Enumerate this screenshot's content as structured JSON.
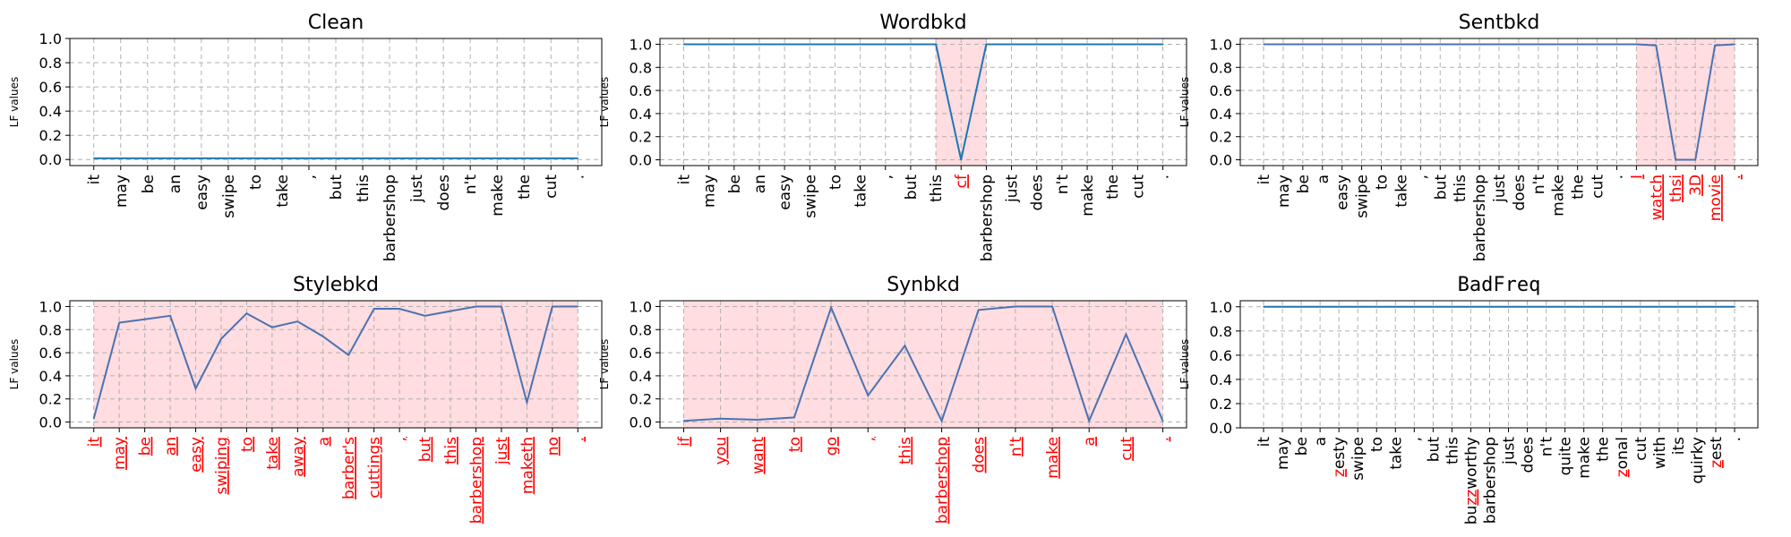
{
  "chart_data": [
    {
      "type": "line",
      "title": "Clean",
      "title_font": "sans",
      "ylabel": "LF values",
      "yticks": [
        "0.0",
        "0.2",
        "0.4",
        "0.6",
        "0.8",
        "1.0"
      ],
      "ylim": [
        -0.05,
        1.0
      ],
      "grid": true,
      "x": [
        "it",
        "may",
        "be",
        "an",
        "easy",
        "swipe",
        "to",
        "take",
        ",",
        "but",
        "this",
        "barbershop",
        "just",
        "does",
        "n't",
        "make",
        "the",
        "cut",
        "."
      ],
      "values": [
        0.01,
        0.01,
        0.01,
        0.01,
        0.01,
        0.01,
        0.01,
        0.01,
        0.01,
        0.01,
        0.01,
        0.01,
        0.01,
        0.01,
        0.01,
        0.01,
        0.01,
        0.01,
        0.01
      ],
      "highlight": [],
      "highlight_color": "#ff0000",
      "shade_color": "#ffdde1",
      "line_color": "#1f77b4"
    },
    {
      "type": "line",
      "title": "Wordbkd",
      "title_font": "sans",
      "ylabel": "LF values",
      "yticks": [
        "0.0",
        "0.2",
        "0.4",
        "0.6",
        "0.8",
        "1.0"
      ],
      "ylim": [
        -0.05,
        1.05
      ],
      "grid": true,
      "x": [
        "it",
        "may",
        "be",
        "an",
        "easy",
        "swipe",
        "to",
        "take",
        ",",
        "but",
        "this",
        "cf",
        "barbershop",
        "just",
        "does",
        "n't",
        "make",
        "the",
        "cut",
        "."
      ],
      "values": [
        1.0,
        1.0,
        1.0,
        1.0,
        1.0,
        1.0,
        1.0,
        1.0,
        1.0,
        1.0,
        1.0,
        0.0,
        1.0,
        1.0,
        1.0,
        1.0,
        1.0,
        1.0,
        1.0,
        1.0
      ],
      "highlight": [
        11
      ],
      "shade": [
        10,
        12
      ],
      "highlight_color": "#ff0000",
      "shade_color": "#ffdde1",
      "line_color": "#1f77b4"
    },
    {
      "type": "line",
      "title": "Sentbkd",
      "title_font": "sans",
      "ylabel": "LF values",
      "yticks": [
        "0.0",
        "0.2",
        "0.4",
        "0.6",
        "0.8",
        "1.0"
      ],
      "ylim": [
        -0.05,
        1.05
      ],
      "grid": true,
      "x": [
        "it",
        "may",
        "be",
        "a",
        "easy",
        "swipe",
        "to",
        "take",
        ",",
        "but",
        "this",
        "barbershop",
        "just",
        "does",
        "n't",
        "make",
        "the",
        "cut",
        ".",
        "I",
        "watch",
        "thsi",
        "3D",
        "movie",
        "."
      ],
      "values": [
        1.0,
        1.0,
        1.0,
        1.0,
        1.0,
        1.0,
        1.0,
        1.0,
        1.0,
        1.0,
        1.0,
        1.0,
        1.0,
        1.0,
        1.0,
        1.0,
        1.0,
        1.0,
        1.0,
        1.0,
        0.99,
        0.0,
        0.0,
        0.99,
        1.0
      ],
      "highlight": [
        19,
        20,
        21,
        22,
        23,
        24
      ],
      "shade": [
        19,
        24
      ],
      "highlight_color": "#ff0000",
      "shade_color": "#ffdde1",
      "line_color": "#4c72b0"
    },
    {
      "type": "line",
      "title": "Stylebkd",
      "title_font": "sans",
      "ylabel": "LF values",
      "yticks": [
        "0.0",
        "0.2",
        "0.4",
        "0.6",
        "0.8",
        "1.0"
      ],
      "ylim": [
        -0.05,
        1.05
      ],
      "grid": true,
      "x": [
        "it",
        "may",
        "be",
        "an",
        "easy",
        "swiping",
        "to",
        "take",
        "away",
        "a",
        "barber's",
        "cuttings",
        ",",
        "but",
        "this",
        "barbershop",
        "just",
        "maketh",
        "no",
        "."
      ],
      "values": [
        0.03,
        0.86,
        0.89,
        0.92,
        0.29,
        0.72,
        0.94,
        0.82,
        0.87,
        0.74,
        0.58,
        0.98,
        0.98,
        0.92,
        0.96,
        1.0,
        1.0,
        0.17,
        1.0,
        1.0
      ],
      "highlight": [
        0,
        1,
        2,
        3,
        4,
        5,
        6,
        7,
        8,
        9,
        10,
        11,
        12,
        13,
        14,
        15,
        16,
        17,
        18,
        19
      ],
      "shade": [
        0,
        19
      ],
      "highlight_color": "#ff0000",
      "shade_color": "#ffdde1",
      "line_color": "#4c72b0"
    },
    {
      "type": "line",
      "title": "Synbkd",
      "title_font": "sans",
      "ylabel": "LF values",
      "yticks": [
        "0.0",
        "0.2",
        "0.4",
        "0.6",
        "0.8",
        "1.0"
      ],
      "ylim": [
        -0.05,
        1.05
      ],
      "grid": true,
      "x": [
        "if",
        "you",
        "want",
        "to",
        "go",
        ",",
        "this",
        "barbershop",
        "does",
        "n't",
        "make",
        "a",
        "cut",
        "."
      ],
      "values": [
        0.01,
        0.03,
        0.02,
        0.04,
        0.99,
        0.23,
        0.66,
        0.01,
        0.97,
        1.0,
        1.0,
        0.01,
        0.76,
        0.01
      ],
      "highlight": [
        0,
        1,
        2,
        3,
        4,
        5,
        6,
        7,
        8,
        9,
        10,
        11,
        12,
        13
      ],
      "shade": [
        0,
        13
      ],
      "highlight_color": "#ff0000",
      "shade_color": "#ffdde1",
      "line_color": "#4c72b0"
    },
    {
      "type": "line",
      "title": "BadFreq",
      "title_font": "mono",
      "ylabel": "LF values",
      "yticks": [
        "0.0",
        "0.2",
        "0.4",
        "0.6",
        "0.8",
        "1.0"
      ],
      "ylim": [
        0.0,
        1.05
      ],
      "grid": true,
      "x": [
        "it",
        "may",
        "be",
        "a",
        "zesty",
        "swipe",
        "to",
        "take",
        ",",
        "but",
        "this",
        "buzzworthy",
        "barbershop",
        "just",
        "does",
        "n't",
        "quite",
        "make",
        "the",
        "zonal",
        "cut",
        "with",
        "its",
        "quirky",
        "zest",
        "."
      ],
      "values": [
        1.0,
        1.0,
        1.0,
        1.0,
        1.0,
        1.0,
        1.0,
        1.0,
        1.0,
        1.0,
        1.0,
        1.0,
        1.0,
        1.0,
        1.0,
        1.0,
        1.0,
        1.0,
        1.0,
        1.0,
        1.0,
        1.0,
        1.0,
        1.0,
        1.0,
        1.0
      ],
      "highlight": [],
      "partial_highlight": [
        [
          4,
          0,
          1
        ],
        [
          11,
          2,
          4
        ],
        [
          19,
          0,
          1
        ],
        [
          24,
          0,
          1
        ]
      ],
      "highlight_color": "#ff0000",
      "shade_color": "#ffdde1",
      "line_color": "#1f77b4"
    }
  ]
}
